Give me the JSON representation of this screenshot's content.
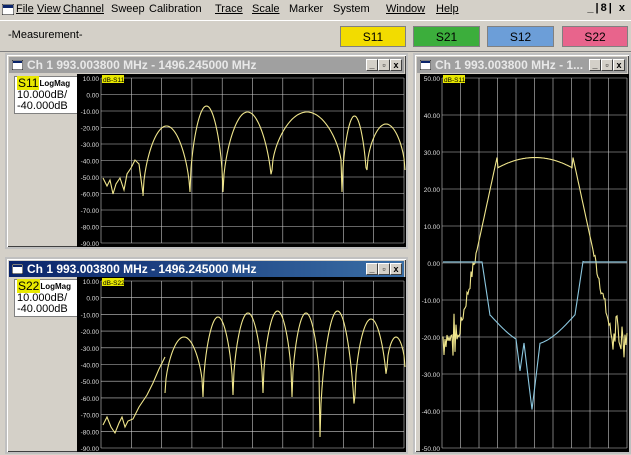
{
  "menu": [
    "File",
    "View",
    "Channel",
    "Sweep",
    "Calibration",
    "Trace",
    "Scale",
    "Marker",
    "System",
    "Window",
    "Help"
  ],
  "mdi_controls": "_|8| x",
  "measurement_label": "-Measurement-",
  "sparams": [
    {
      "label": "S11",
      "color": "#f2dc00"
    },
    {
      "label": "S21",
      "color": "#3cae3c"
    },
    {
      "label": "S12",
      "color": "#6c9ed8"
    },
    {
      "label": "S22",
      "color": "#e8648c"
    }
  ],
  "windows": [
    {
      "title": "Ch 1  993.003800 MHz - 1496.245000 MHz",
      "state": "inactive",
      "trace": "S11",
      "format": "LogMag",
      "scale": "10.000dB/",
      "ref": "-40.000dB",
      "trace_tag": "dB-S11"
    },
    {
      "title": "Ch 1  993.003800 MHz - 1496.245000 MHz",
      "state": "active",
      "trace": "S22",
      "format": "LogMag",
      "scale": "10.000dB/",
      "ref": "-40.000dB",
      "trace_tag": "dB-S22"
    },
    {
      "title": "Ch 1  993.003800 MHz - 1...",
      "state": "inactive",
      "trace_tag": "dB-S11"
    }
  ],
  "y_ticks_left": [
    "10.00",
    "0.00",
    "-10.00",
    "-20.00",
    "-30.00",
    "-40.00",
    "-50.00",
    "-60.00",
    "-70.00",
    "-80.00",
    "-90.00"
  ],
  "y_ticks_right": [
    "50.00",
    "40.00",
    "30.00",
    "20.00",
    "10.00",
    "0.00",
    "-10.00",
    "-20.00",
    "-30.00",
    "-40.00",
    "-50.00"
  ],
  "colors": {
    "trace_yellow": "#f0e68c",
    "trace_blue": "#8cc8e0",
    "grid": "#c8c8c8"
  }
}
